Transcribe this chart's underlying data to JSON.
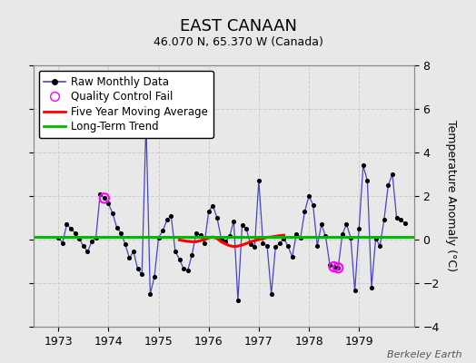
{
  "title": "EAST CANAAN",
  "subtitle": "46.070 N, 65.370 W (Canada)",
  "ylabel": "Temperature Anomaly (°C)",
  "watermark": "Berkeley Earth",
  "ylim": [
    -4,
    8
  ],
  "xlim": [
    1972.5,
    1980.1
  ],
  "xticks": [
    1973,
    1974,
    1975,
    1976,
    1977,
    1978,
    1979
  ],
  "yticks": [
    -4,
    -2,
    0,
    2,
    4,
    6,
    8
  ],
  "bg_color": "#e8e8e8",
  "plot_bg_color": "#dcdcdc",
  "monthly_data": [
    [
      1973.0,
      0.1
    ],
    [
      1973.083,
      -0.15
    ],
    [
      1973.167,
      0.7
    ],
    [
      1973.25,
      0.5
    ],
    [
      1973.333,
      0.3
    ],
    [
      1973.417,
      0.05
    ],
    [
      1973.5,
      -0.3
    ],
    [
      1973.583,
      -0.55
    ],
    [
      1973.667,
      -0.1
    ],
    [
      1973.75,
      0.1
    ],
    [
      1973.833,
      2.1
    ],
    [
      1973.917,
      1.9
    ],
    [
      1974.0,
      1.65
    ],
    [
      1974.083,
      1.2
    ],
    [
      1974.167,
      0.55
    ],
    [
      1974.25,
      0.3
    ],
    [
      1974.333,
      -0.2
    ],
    [
      1974.417,
      -0.85
    ],
    [
      1974.5,
      -0.55
    ],
    [
      1974.583,
      -1.35
    ],
    [
      1974.667,
      -1.6
    ],
    [
      1974.75,
      5.4
    ],
    [
      1974.833,
      -2.5
    ],
    [
      1974.917,
      -1.7
    ],
    [
      1975.0,
      0.1
    ],
    [
      1975.083,
      0.4
    ],
    [
      1975.167,
      0.9
    ],
    [
      1975.25,
      1.1
    ],
    [
      1975.333,
      -0.55
    ],
    [
      1975.417,
      -0.9
    ],
    [
      1975.5,
      -1.35
    ],
    [
      1975.583,
      -1.4
    ],
    [
      1975.667,
      -0.7
    ],
    [
      1975.75,
      0.3
    ],
    [
      1975.833,
      0.2
    ],
    [
      1975.917,
      -0.15
    ],
    [
      1976.0,
      1.3
    ],
    [
      1976.083,
      1.55
    ],
    [
      1976.167,
      1.0
    ],
    [
      1976.25,
      0.05
    ],
    [
      1976.333,
      -0.1
    ],
    [
      1976.417,
      0.15
    ],
    [
      1976.5,
      0.85
    ],
    [
      1976.583,
      -2.8
    ],
    [
      1976.667,
      0.65
    ],
    [
      1976.75,
      0.5
    ],
    [
      1976.833,
      -0.2
    ],
    [
      1976.917,
      -0.35
    ],
    [
      1977.0,
      2.7
    ],
    [
      1977.083,
      -0.15
    ],
    [
      1977.167,
      -0.3
    ],
    [
      1977.25,
      -2.5
    ],
    [
      1977.333,
      -0.35
    ],
    [
      1977.417,
      -0.15
    ],
    [
      1977.5,
      0.05
    ],
    [
      1977.583,
      -0.3
    ],
    [
      1977.667,
      -0.8
    ],
    [
      1977.75,
      0.25
    ],
    [
      1977.833,
      0.1
    ],
    [
      1977.917,
      1.3
    ],
    [
      1978.0,
      2.0
    ],
    [
      1978.083,
      1.6
    ],
    [
      1978.167,
      -0.3
    ],
    [
      1978.25,
      0.7
    ],
    [
      1978.333,
      0.15
    ],
    [
      1978.417,
      -1.15
    ],
    [
      1978.5,
      -1.25
    ],
    [
      1978.583,
      -1.3
    ],
    [
      1978.667,
      0.25
    ],
    [
      1978.75,
      0.7
    ],
    [
      1978.833,
      0.1
    ],
    [
      1978.917,
      -2.35
    ],
    [
      1979.0,
      0.5
    ],
    [
      1979.083,
      3.4
    ],
    [
      1979.167,
      2.7
    ],
    [
      1979.25,
      -2.2
    ],
    [
      1979.333,
      0.05
    ],
    [
      1979.417,
      -0.3
    ],
    [
      1979.5,
      0.9
    ],
    [
      1979.583,
      2.5
    ],
    [
      1979.667,
      3.0
    ],
    [
      1979.75,
      1.0
    ],
    [
      1979.833,
      0.9
    ],
    [
      1979.917,
      0.75
    ]
  ],
  "qc_fail_points": [
    [
      1973.917,
      1.9
    ],
    [
      1978.5,
      -1.25
    ],
    [
      1978.583,
      -1.3
    ]
  ],
  "moving_avg": [
    [
      1975.417,
      -0.02
    ],
    [
      1975.5,
      -0.05
    ],
    [
      1975.583,
      -0.08
    ],
    [
      1975.667,
      -0.1
    ],
    [
      1975.75,
      -0.1
    ],
    [
      1975.833,
      -0.05
    ],
    [
      1975.917,
      0.0
    ],
    [
      1976.0,
      0.08
    ],
    [
      1976.083,
      0.12
    ],
    [
      1976.167,
      0.05
    ],
    [
      1976.25,
      -0.1
    ],
    [
      1976.333,
      -0.2
    ],
    [
      1976.417,
      -0.28
    ],
    [
      1976.5,
      -0.32
    ],
    [
      1976.583,
      -0.3
    ],
    [
      1976.667,
      -0.25
    ],
    [
      1976.75,
      -0.18
    ],
    [
      1976.833,
      -0.1
    ],
    [
      1976.917,
      -0.05
    ],
    [
      1977.0,
      0.0
    ],
    [
      1977.083,
      0.05
    ],
    [
      1977.167,
      0.1
    ],
    [
      1977.25,
      0.12
    ],
    [
      1977.333,
      0.15
    ],
    [
      1977.417,
      0.18
    ],
    [
      1977.5,
      0.2
    ]
  ],
  "long_term_trend_y": 0.12,
  "raw_line_color": "#4444cc",
  "raw_marker_color": "#000000",
  "moving_avg_color": "#ff0000",
  "long_term_color": "#00bb00",
  "qc_color": "#ff00ff",
  "grid_color": "#cccccc",
  "title_fontsize": 13,
  "subtitle_fontsize": 9,
  "legend_fontsize": 8.5
}
